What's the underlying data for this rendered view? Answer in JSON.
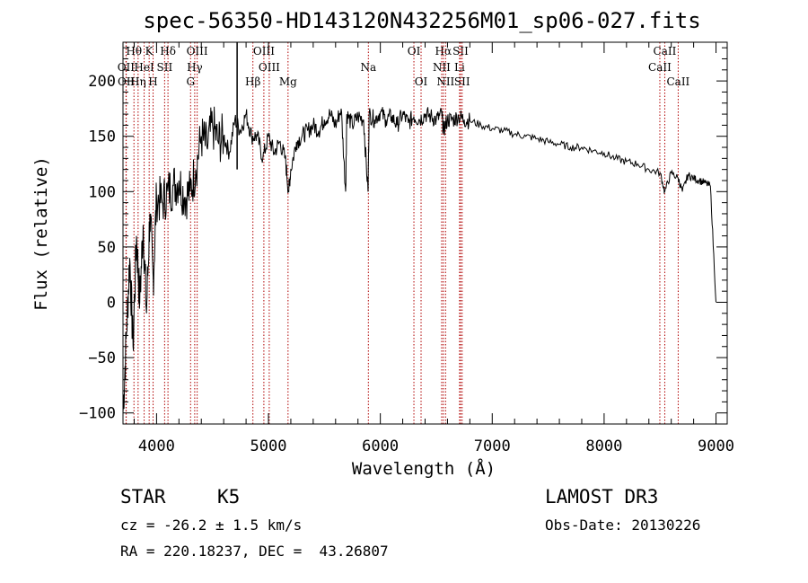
{
  "chart_data": {
    "type": "line",
    "title": "spec-56350-HD143120N432256M01_sp06-027.fits",
    "xlabel": "Wavelength (Å)",
    "ylabel": "Flux (relative)",
    "xlim": [
      3700,
      9100
    ],
    "ylim": [
      -110,
      235
    ],
    "x_ticks": [
      4000,
      5000,
      6000,
      7000,
      8000,
      9000
    ],
    "y_ticks": [
      -100,
      -50,
      0,
      50,
      100,
      150,
      200
    ],
    "grid": false,
    "series": [
      {
        "name": "flux",
        "x": [
          3700,
          3730,
          3760,
          3790,
          3820,
          3850,
          3880,
          3910,
          3940,
          3970,
          4000,
          4050,
          4100,
          4150,
          4200,
          4250,
          4300,
          4350,
          4400,
          4450,
          4500,
          4550,
          4600,
          4650,
          4700,
          4750,
          4800,
          4850,
          4900,
          4950,
          5000,
          5050,
          5100,
          5150,
          5180,
          5200,
          5250,
          5300,
          5350,
          5400,
          5450,
          5500,
          5550,
          5600,
          5650,
          5690,
          5700,
          5750,
          5800,
          5850,
          5890,
          5900,
          5950,
          6000,
          6050,
          6100,
          6150,
          6200,
          6250,
          6300,
          6350,
          6400,
          6450,
          6500,
          6550,
          6563,
          6600,
          6650,
          6700,
          6750,
          6800,
          6900,
          7000,
          7100,
          7200,
          7300,
          7400,
          7500,
          7600,
          7700,
          7800,
          7900,
          8000,
          8100,
          8200,
          8300,
          8400,
          8500,
          8542,
          8600,
          8662,
          8700,
          8750,
          8800,
          8850,
          8900,
          8950,
          9000
        ],
        "y": [
          -100,
          -30,
          40,
          -40,
          60,
          0,
          70,
          -10,
          80,
          20,
          95,
          90,
          100,
          105,
          110,
          95,
          100,
          120,
          150,
          140,
          160,
          145,
          150,
          135,
          165,
          155,
          170,
          150,
          150,
          130,
          150,
          135,
          145,
          130,
          100,
          120,
          145,
          150,
          155,
          160,
          155,
          165,
          170,
          160,
          175,
          100,
          170,
          160,
          168,
          165,
          100,
          170,
          165,
          172,
          165,
          168,
          160,
          170,
          162,
          168,
          165,
          170,
          168,
          165,
          170,
          155,
          165,
          165,
          168,
          165,
          164,
          160,
          157,
          155,
          152,
          150,
          148,
          145,
          143,
          140,
          140,
          137,
          135,
          130,
          127,
          125,
          120,
          117,
          100,
          117,
          112,
          100,
          115,
          112,
          110,
          108,
          105,
          0
        ]
      }
    ],
    "spectral_lines": [
      {
        "label": "Hθ",
        "x": 3798,
        "row": 0
      },
      {
        "label": "K",
        "x": 3934,
        "row": 0
      },
      {
        "label": "Hδ",
        "x": 4102,
        "row": 0
      },
      {
        "label": "OIII",
        "x": 4363,
        "row": 0
      },
      {
        "label": "OIII",
        "x": 4959,
        "row": 0
      },
      {
        "label": "OI",
        "x": 6300,
        "row": 0
      },
      {
        "label": "Hα",
        "x": 6563,
        "row": 0
      },
      {
        "label": "SII",
        "x": 6717,
        "row": 0
      },
      {
        "label": "CaII",
        "x": 8542,
        "row": 0
      },
      {
        "label": "OII",
        "x": 3727,
        "row": 1
      },
      {
        "label": "HeI",
        "x": 3889,
        "row": 1
      },
      {
        "label": "SII",
        "x": 4072,
        "row": 1
      },
      {
        "label": "Hγ",
        "x": 4341,
        "row": 1
      },
      {
        "label": "OIII",
        "x": 5007,
        "row": 1
      },
      {
        "label": "Na",
        "x": 5893,
        "row": 1
      },
      {
        "label": "NII",
        "x": 6548,
        "row": 1
      },
      {
        "label": "Li",
        "x": 6708,
        "row": 1
      },
      {
        "label": "CaII",
        "x": 8498,
        "row": 1
      },
      {
        "label": "OII",
        "x": 3729,
        "row": 2
      },
      {
        "label": "Hη",
        "x": 3835,
        "row": 2
      },
      {
        "label": "H",
        "x": 3969,
        "row": 2
      },
      {
        "label": "G",
        "x": 4304,
        "row": 2
      },
      {
        "label": "Hβ",
        "x": 4861,
        "row": 2
      },
      {
        "label": "Mg",
        "x": 5175,
        "row": 2
      },
      {
        "label": "OI",
        "x": 6364,
        "row": 2
      },
      {
        "label": "NII",
        "x": 6583,
        "row": 2
      },
      {
        "label": "SII",
        "x": 6731,
        "row": 2
      },
      {
        "label": "CaII",
        "x": 8662,
        "row": 2
      }
    ],
    "solid_marker_x": 4720
  },
  "info": {
    "class_label": "STAR",
    "subclass": "K5",
    "survey": "LAMOST DR3",
    "cz": "cz = -26.2 ± 1.5 km/s",
    "obs_date": "Obs-Date: 20130226",
    "radec": "RA = 220.18237, DEC =  43.26807"
  }
}
